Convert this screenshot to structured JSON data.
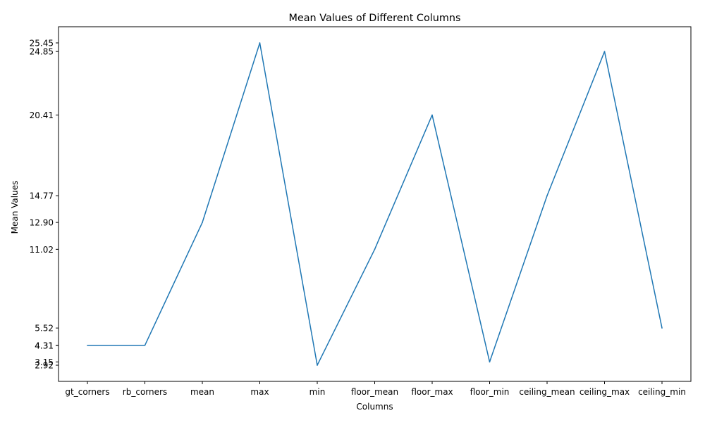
{
  "chart_data": {
    "type": "line",
    "title": "Mean Values of Different Columns",
    "xlabel": "Columns",
    "ylabel": "Mean Values",
    "categories": [
      "gt_corners",
      "rb_corners",
      "mean",
      "max",
      "min",
      "floor_mean",
      "floor_max",
      "floor_min",
      "ceiling_mean",
      "ceiling_max",
      "ceiling_min"
    ],
    "values": [
      4.31,
      4.31,
      12.9,
      25.45,
      2.92,
      11.02,
      20.41,
      3.15,
      14.77,
      24.85,
      5.52
    ],
    "yticks": [
      "2.92",
      "3.15",
      "4.31",
      "4.31",
      "5.52",
      "11.02",
      "12.90",
      "14.77",
      "20.41",
      "24.85",
      "25.45"
    ],
    "ylim": [
      1.79,
      26.58
    ],
    "grid": false,
    "line_color": "#1f77b4"
  }
}
